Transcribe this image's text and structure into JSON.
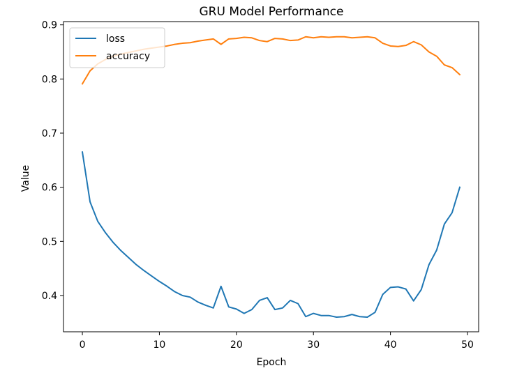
{
  "chart_data": {
    "type": "line",
    "title": "GRU Model Performance",
    "xlabel": "Epoch",
    "ylabel": "Value",
    "xlim": [
      -2.45,
      51.45
    ],
    "ylim": [
      0.333,
      0.906
    ],
    "xticks": [
      0,
      10,
      20,
      30,
      40,
      50
    ],
    "yticks": [
      0.4,
      0.5,
      0.6,
      0.7,
      0.8,
      0.9
    ],
    "xtick_labels": [
      "0",
      "10",
      "20",
      "30",
      "40",
      "50"
    ],
    "ytick_labels": [
      "0.4",
      "0.5",
      "0.6",
      "0.7",
      "0.8",
      "0.9"
    ],
    "grid": false,
    "legend_position": "upper-left",
    "x": [
      0,
      1,
      2,
      3,
      4,
      5,
      6,
      7,
      8,
      9,
      10,
      11,
      12,
      13,
      14,
      15,
      16,
      17,
      18,
      19,
      20,
      21,
      22,
      23,
      24,
      25,
      26,
      27,
      28,
      29,
      30,
      31,
      32,
      33,
      34,
      35,
      36,
      37,
      38,
      39,
      40,
      41,
      42,
      43,
      44,
      45,
      46,
      47,
      48,
      49
    ],
    "series": [
      {
        "name": "loss",
        "color": "#1f77b4",
        "values": [
          0.665,
          0.573,
          0.537,
          0.516,
          0.498,
          0.483,
          0.47,
          0.457,
          0.446,
          0.436,
          0.426,
          0.417,
          0.407,
          0.4,
          0.397,
          0.388,
          0.382,
          0.377,
          0.417,
          0.379,
          0.375,
          0.367,
          0.374,
          0.391,
          0.396,
          0.374,
          0.377,
          0.391,
          0.385,
          0.361,
          0.367,
          0.363,
          0.363,
          0.36,
          0.361,
          0.365,
          0.361,
          0.36,
          0.369,
          0.402,
          0.415,
          0.416,
          0.412,
          0.39,
          0.411,
          0.457,
          0.484,
          0.532,
          0.553,
          0.6
        ]
      },
      {
        "name": "accuracy",
        "color": "#ff7f0e",
        "values": [
          0.791,
          0.815,
          0.828,
          0.836,
          0.842,
          0.846,
          0.849,
          0.852,
          0.855,
          0.857,
          0.859,
          0.861,
          0.864,
          0.866,
          0.867,
          0.87,
          0.872,
          0.874,
          0.864,
          0.874,
          0.875,
          0.877,
          0.876,
          0.871,
          0.869,
          0.875,
          0.874,
          0.871,
          0.872,
          0.878,
          0.876,
          0.878,
          0.877,
          0.878,
          0.878,
          0.876,
          0.877,
          0.878,
          0.876,
          0.866,
          0.861,
          0.86,
          0.862,
          0.869,
          0.863,
          0.85,
          0.842,
          0.826,
          0.821,
          0.808
        ]
      }
    ]
  }
}
